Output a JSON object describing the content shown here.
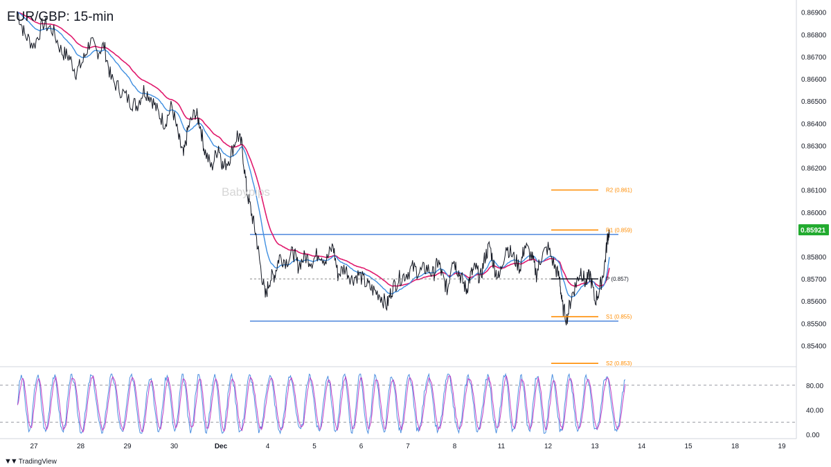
{
  "title": "EUR/GBP: 15-min",
  "watermark": "Babypips",
  "brand": {
    "icon": "tradingview-logo-icon",
    "name": "TradingView"
  },
  "colors": {
    "price": "#131722",
    "ma_fast": "#3d8ee0",
    "ma_slow": "#e0186c",
    "range": "#2a6fd6",
    "pivot": "#ff8c00",
    "last_price_bg": "#22ab2f",
    "stoch_k": "#4c8fe0",
    "stoch_d": "#c23fc5"
  },
  "chart_data": {
    "type": "line",
    "price_axis": {
      "min": 0.8531,
      "max": 0.8696,
      "ticks": [
        "0.86900",
        "0.86800",
        "0.86700",
        "0.86600",
        "0.86500",
        "0.86400",
        "0.86300",
        "0.86200",
        "0.86100",
        "0.86000",
        "0.85800",
        "0.85700",
        "0.85600",
        "0.85500",
        "0.85400"
      ]
    },
    "last_price": {
      "value": 0.85921,
      "label": "0.85921"
    },
    "x_axis": {
      "ticks": [
        "27",
        "28",
        "29",
        "30",
        "Dec",
        "4",
        "5",
        "6",
        "7",
        "8",
        "11",
        "12",
        "13",
        "14",
        "15",
        "18",
        "19"
      ]
    },
    "range_lines": {
      "upper": 0.859,
      "lower": 0.8551,
      "start": "Dec",
      "end": "12"
    },
    "pivot_levels": [
      {
        "name": "R2",
        "label": "R2 (0.861)",
        "value": 0.861
      },
      {
        "name": "R1",
        "label": "R1 (0.859)",
        "value": 0.8592
      },
      {
        "name": "P",
        "label": "P (0.857)",
        "value": 0.857
      },
      {
        "name": "S1",
        "label": "S1 (0.855)",
        "value": 0.8553
      },
      {
        "name": "S2",
        "label": "S2 (0.853)",
        "value": 0.8532
      }
    ],
    "price_series": [
      [
        0,
        0.869
      ],
      [
        0.15,
        0.868
      ],
      [
        0.35,
        0.8675
      ],
      [
        0.55,
        0.8685
      ],
      [
        0.75,
        0.8682
      ],
      [
        0.95,
        0.8672
      ],
      [
        1.1,
        0.867
      ],
      [
        1.25,
        0.8663
      ],
      [
        1.4,
        0.8668
      ],
      [
        1.55,
        0.8677
      ],
      [
        1.7,
        0.8672
      ],
      [
        1.85,
        0.8675
      ],
      [
        2.0,
        0.866
      ],
      [
        2.2,
        0.8655
      ],
      [
        2.4,
        0.865
      ],
      [
        2.55,
        0.8648
      ],
      [
        2.7,
        0.8655
      ],
      [
        2.85,
        0.8652
      ],
      [
        3.0,
        0.8645
      ],
      [
        3.15,
        0.864
      ],
      [
        3.3,
        0.8648
      ],
      [
        3.45,
        0.8633
      ],
      [
        3.55,
        0.8625
      ],
      [
        3.65,
        0.8638
      ],
      [
        3.8,
        0.8645
      ],
      [
        3.9,
        0.864
      ],
      [
        4.0,
        0.8628
      ],
      [
        4.15,
        0.862
      ],
      [
        4.3,
        0.863
      ],
      [
        4.4,
        0.862
      ],
      [
        4.55,
        0.8625
      ],
      [
        4.7,
        0.8635
      ],
      [
        4.8,
        0.863
      ],
      [
        4.9,
        0.861
      ],
      [
        5.0,
        0.86
      ],
      [
        5.1,
        0.859
      ],
      [
        5.2,
        0.8575
      ],
      [
        5.3,
        0.8562
      ],
      [
        5.4,
        0.857
      ],
      [
        5.5,
        0.8572
      ],
      [
        5.6,
        0.858
      ],
      [
        5.75,
        0.8578
      ],
      [
        5.9,
        0.8582
      ],
      [
        6.0,
        0.8576
      ],
      [
        6.15,
        0.858
      ],
      [
        6.3,
        0.8578
      ],
      [
        6.45,
        0.8582
      ],
      [
        6.6,
        0.8578
      ],
      [
        6.75,
        0.8585
      ],
      [
        6.85,
        0.8572
      ],
      [
        7.0,
        0.8575
      ],
      [
        7.15,
        0.857
      ],
      [
        7.3,
        0.8572
      ],
      [
        7.45,
        0.8568
      ],
      [
        7.6,
        0.8565
      ],
      [
        7.75,
        0.8563
      ],
      [
        7.9,
        0.8558
      ],
      [
        8.0,
        0.8565
      ],
      [
        8.15,
        0.857
      ],
      [
        8.3,
        0.8572
      ],
      [
        8.45,
        0.8575
      ],
      [
        8.6,
        0.8573
      ],
      [
        8.75,
        0.8575
      ],
      [
        8.9,
        0.8572
      ],
      [
        9.0,
        0.8578
      ],
      [
        9.1,
        0.857
      ],
      [
        9.2,
        0.8565
      ],
      [
        9.3,
        0.858
      ],
      [
        9.4,
        0.8575
      ],
      [
        9.5,
        0.857
      ],
      [
        9.6,
        0.8565
      ],
      [
        9.7,
        0.8572
      ],
      [
        9.8,
        0.8575
      ],
      [
        9.9,
        0.857
      ],
      [
        10.0,
        0.858
      ],
      [
        10.1,
        0.8585
      ],
      [
        10.2,
        0.8575
      ],
      [
        10.3,
        0.857
      ],
      [
        10.45,
        0.8585
      ],
      [
        10.6,
        0.858
      ],
      [
        10.75,
        0.8575
      ],
      [
        10.85,
        0.8585
      ],
      [
        11.0,
        0.858
      ],
      [
        11.1,
        0.8572
      ],
      [
        11.2,
        0.858
      ],
      [
        11.35,
        0.8584
      ],
      [
        11.5,
        0.8575
      ],
      [
        11.6,
        0.857
      ],
      [
        11.65,
        0.8558
      ],
      [
        11.75,
        0.8552
      ],
      [
        11.85,
        0.8562
      ],
      [
        11.95,
        0.8568
      ],
      [
        12.05,
        0.8574
      ],
      [
        12.15,
        0.8568
      ],
      [
        12.25,
        0.8572
      ],
      [
        12.35,
        0.856
      ],
      [
        12.45,
        0.8565
      ],
      [
        12.55,
        0.8575
      ],
      [
        12.62,
        0.8588
      ],
      [
        12.66,
        0.8592
      ]
    ],
    "stochastic_axis": {
      "min": 0,
      "max": 100,
      "ticks": [
        "80.00",
        "40.00",
        "0.00"
      ],
      "levels": [
        80,
        20
      ]
    },
    "stochastic_k_period": 0.19
  }
}
